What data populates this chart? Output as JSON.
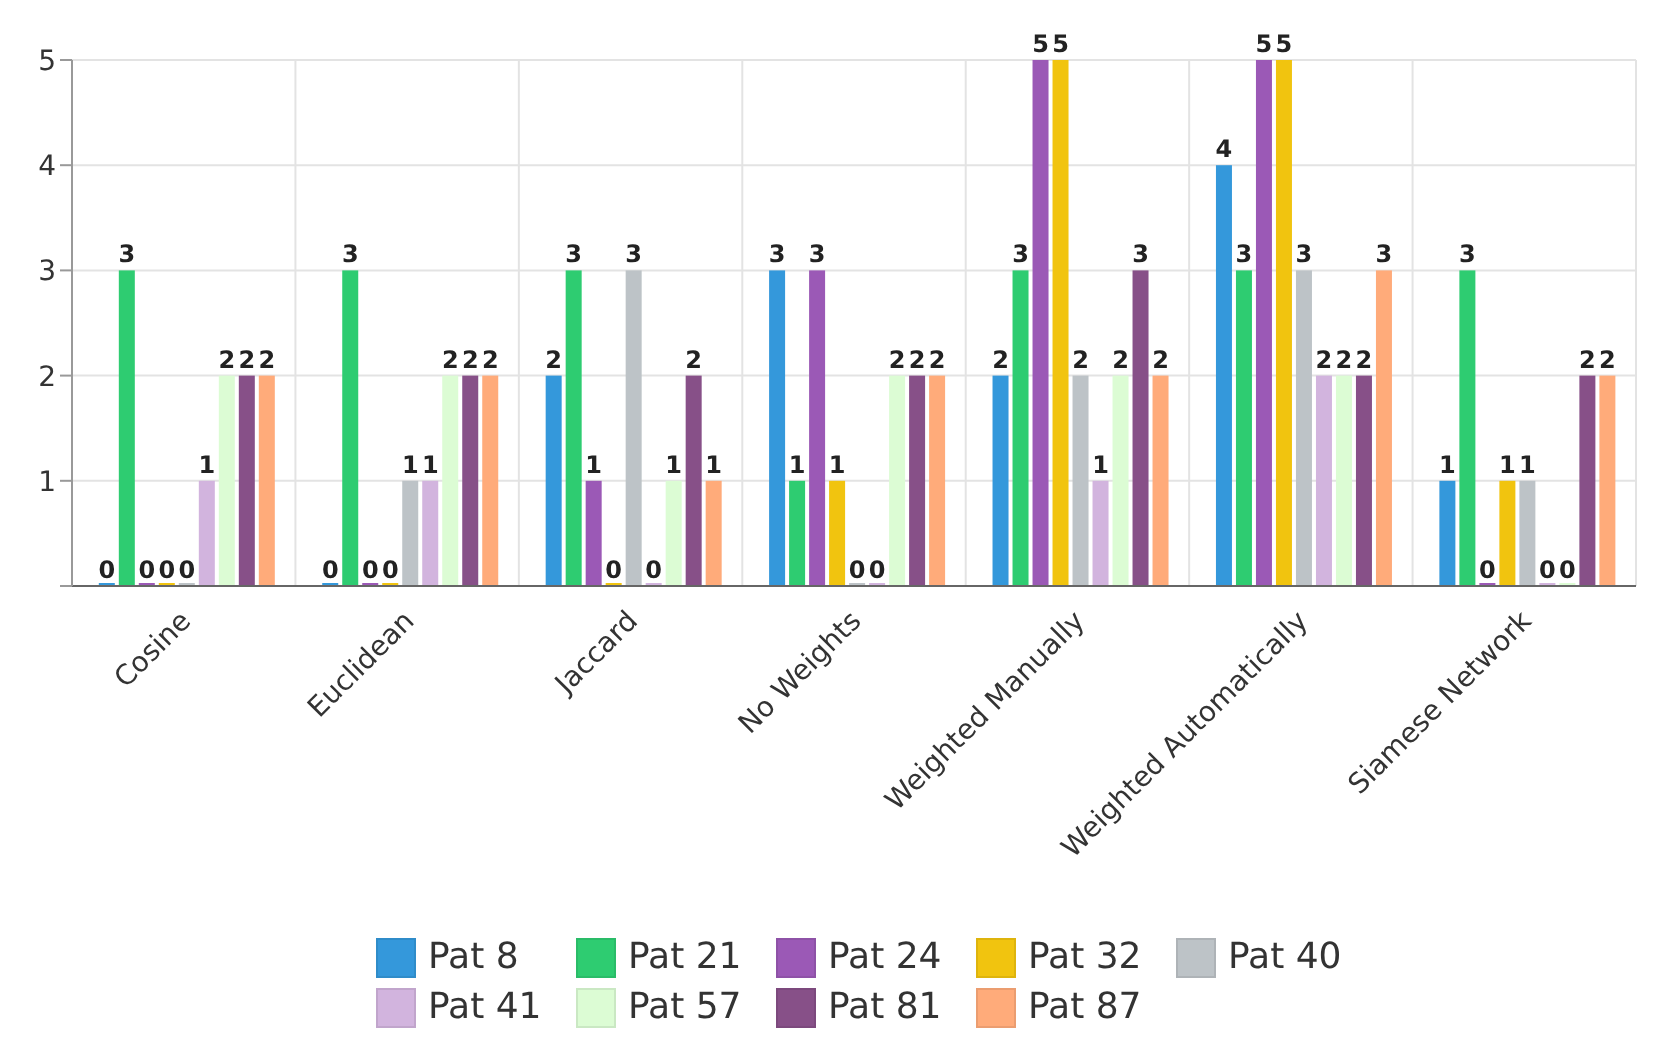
{
  "chart_data": {
    "type": "bar",
    "categories": [
      "Cosine",
      "Euclidean",
      "Jaccard",
      "No Weights",
      "Weighted Manually",
      "Weighted Automatically",
      "Siamese Network"
    ],
    "series": [
      {
        "name": "Pat 8",
        "color": "#3498db",
        "values": [
          0,
          0,
          2,
          3,
          2,
          4,
          1
        ]
      },
      {
        "name": "Pat 21",
        "color": "#2ecc71",
        "values": [
          3,
          3,
          3,
          1,
          3,
          3,
          3
        ]
      },
      {
        "name": "Pat 24",
        "color": "#9b59b6",
        "values": [
          0,
          0,
          1,
          3,
          5,
          5,
          0
        ]
      },
      {
        "name": "Pat 32",
        "color": "#f1c40f",
        "values": [
          0,
          0,
          0,
          1,
          5,
          5,
          1
        ]
      },
      {
        "name": "Pat 40",
        "color": "#bdc3c7",
        "values": [
          0,
          1,
          3,
          0,
          2,
          3,
          1
        ]
      },
      {
        "name": "Pat 41",
        "color": "#d2b4de",
        "values": [
          1,
          1,
          0,
          0,
          1,
          2,
          0
        ]
      },
      {
        "name": "Pat 57",
        "color": "#dcfcd4",
        "values": [
          2,
          2,
          1,
          2,
          2,
          2,
          0
        ]
      },
      {
        "name": "Pat 81",
        "color": "#875088",
        "values": [
          2,
          2,
          2,
          2,
          3,
          2,
          2
        ]
      },
      {
        "name": "Pat 87",
        "color": "#ffab7a",
        "values": [
          2,
          2,
          1,
          2,
          2,
          3,
          2
        ]
      }
    ],
    "ylim": [
      0,
      5
    ],
    "yticks": [
      {
        "value": 0,
        "label": null
      },
      1,
      2,
      3,
      4,
      5
    ],
    "grid": true,
    "legend": "bottom",
    "data_labels": true
  }
}
